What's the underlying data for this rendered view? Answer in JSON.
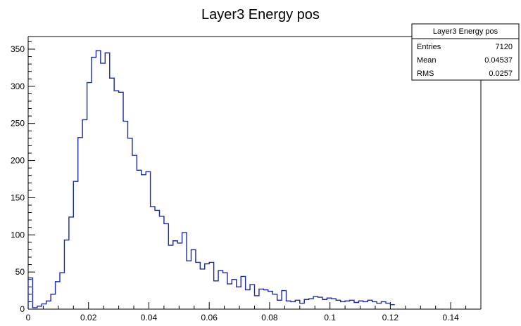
{
  "chart_data": {
    "type": "bar",
    "title": "Layer3 Energy pos",
    "xlabel": "",
    "ylabel": "",
    "xlim": [
      0,
      0.15
    ],
    "ylim": [
      0,
      367
    ],
    "x_ticks": [
      "0",
      "0.02",
      "0.04",
      "0.06",
      "0.08",
      "0.1",
      "0.12",
      "0.14"
    ],
    "y_ticks": [
      "0",
      "50",
      "100",
      "150",
      "200",
      "250",
      "300",
      "350"
    ],
    "bin_width": 0.0015,
    "bin_start": 0,
    "values": [
      42,
      2,
      4,
      7,
      11,
      20,
      37,
      49,
      93,
      124,
      172,
      231,
      255,
      305,
      339,
      348,
      331,
      345,
      311,
      294,
      292,
      253,
      230,
      207,
      187,
      181,
      185,
      138,
      133,
      125,
      115,
      86,
      92,
      89,
      103,
      65,
      80,
      63,
      54,
      61,
      63,
      38,
      52,
      49,
      34,
      40,
      30,
      44,
      26,
      33,
      18,
      27,
      26,
      24,
      20,
      12,
      25,
      11,
      10,
      12,
      8,
      13,
      14,
      17,
      16,
      13,
      15,
      14,
      12,
      10,
      11,
      12,
      9,
      11,
      10,
      12,
      10,
      8,
      10,
      8,
      6
    ],
    "line_color": "#1b2a9e",
    "grid": false,
    "legend": "none",
    "stats_box": {
      "placement": "top-right",
      "title": "Layer3 Energy pos",
      "rows": [
        {
          "label": "Entries",
          "value": "7120"
        },
        {
          "label": "Mean",
          "value": "0.04537"
        },
        {
          "label": "RMS",
          "value": "0.0257"
        }
      ]
    }
  }
}
